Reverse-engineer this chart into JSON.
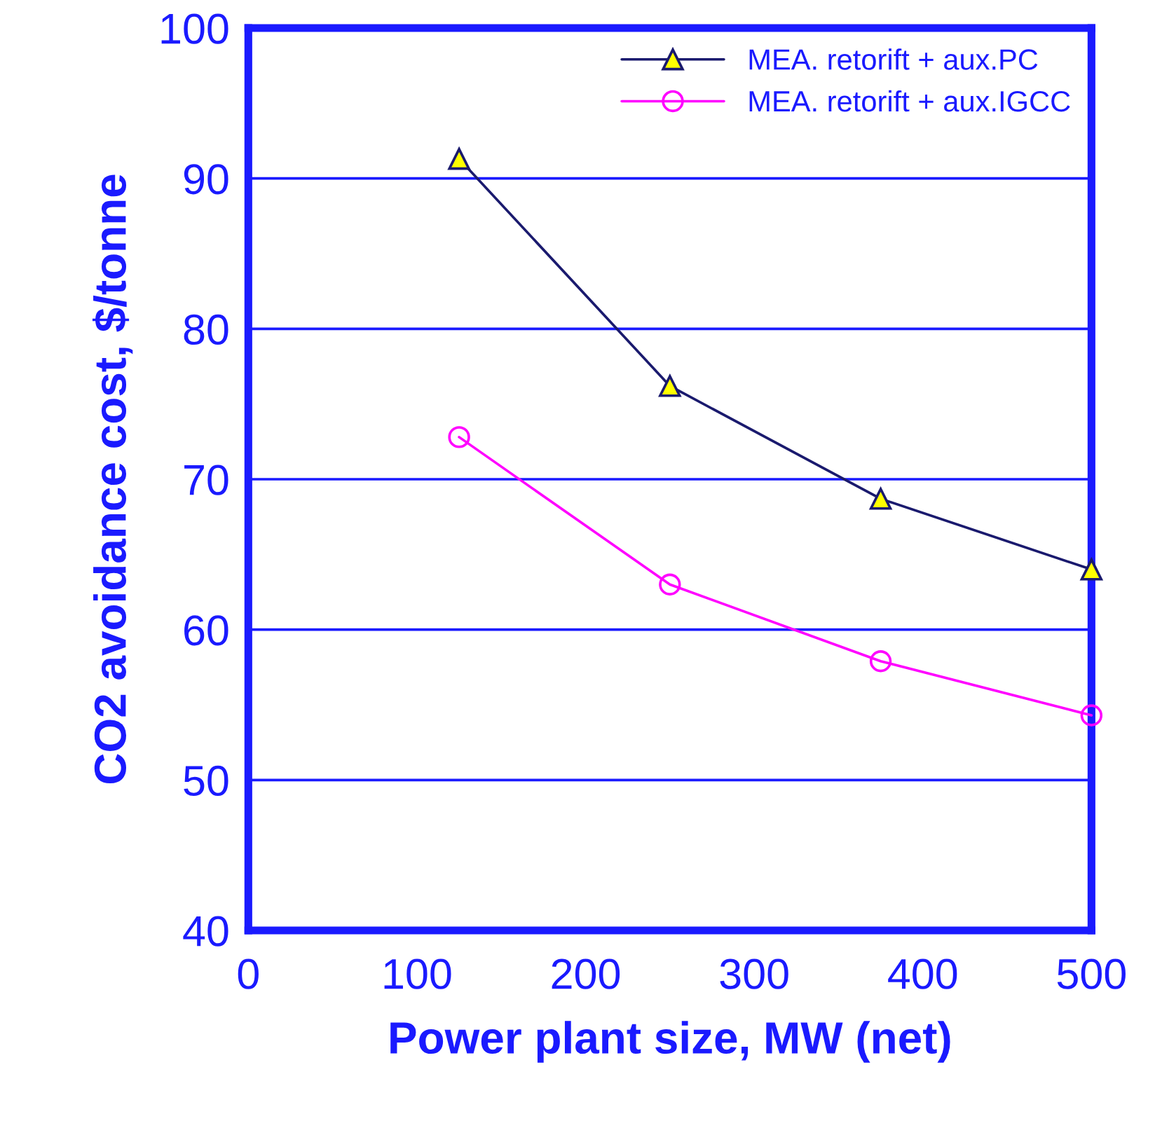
{
  "chart_data": {
    "type": "line",
    "xlabel": "Power plant size, MW (net)",
    "ylabel": "CO2 avoidance cost, $/tonne",
    "x": [
      125,
      250,
      375,
      500
    ],
    "series": [
      {
        "name": "MEA. retorift + aux.PC",
        "color": "#1a1a6e",
        "marker": "triangle",
        "values": [
          91.3,
          76.2,
          68.7,
          64.0
        ]
      },
      {
        "name": "MEA. retorift + aux.IGCC",
        "color": "#ff00ff",
        "marker": "circle",
        "values": [
          72.8,
          63.0,
          57.9,
          54.3
        ]
      }
    ],
    "xlim": [
      0,
      500
    ],
    "xticks": [
      0,
      100,
      200,
      300,
      400,
      500
    ],
    "ylim": [
      40,
      100
    ],
    "yticks": [
      40,
      50,
      60,
      70,
      80,
      90,
      100
    ],
    "grid": "y",
    "legend": "top right"
  }
}
